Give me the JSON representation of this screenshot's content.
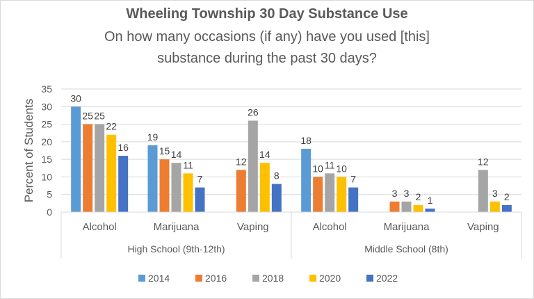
{
  "chart_data": {
    "type": "bar",
    "title": "Wheeling Township 30 Day Substance Use",
    "subtitle_lines": [
      "On how many occasions (if any) have you used [this]",
      "substance during the past 30 days?"
    ],
    "ylabel": "Percent of Students",
    "ylim": [
      0,
      35
    ],
    "yticks": [
      0,
      5,
      10,
      15,
      20,
      25,
      30,
      35
    ],
    "grid": true,
    "legend_position": "bottom",
    "groups": [
      {
        "name": "High School (9th-12th)",
        "categories": [
          "Alcohol",
          "Marijuana",
          "Vaping"
        ]
      },
      {
        "name": "Middle School (8th)",
        "categories": [
          "Alcohol",
          "Marijuana",
          "Vaping"
        ]
      }
    ],
    "series": [
      {
        "name": "2014",
        "color": "#5b9bd5",
        "values": [
          30,
          19,
          null,
          18,
          null,
          null
        ]
      },
      {
        "name": "2016",
        "color": "#ed7d31",
        "values": [
          25,
          15,
          12,
          10,
          3,
          null
        ]
      },
      {
        "name": "2018",
        "color": "#a5a5a5",
        "values": [
          25,
          14,
          26,
          11,
          3,
          12
        ]
      },
      {
        "name": "2020",
        "color": "#ffc000",
        "values": [
          22,
          11,
          14,
          10,
          2,
          3
        ]
      },
      {
        "name": "2022",
        "color": "#4472c4",
        "values": [
          16,
          7,
          8,
          7,
          1,
          2
        ]
      }
    ]
  }
}
